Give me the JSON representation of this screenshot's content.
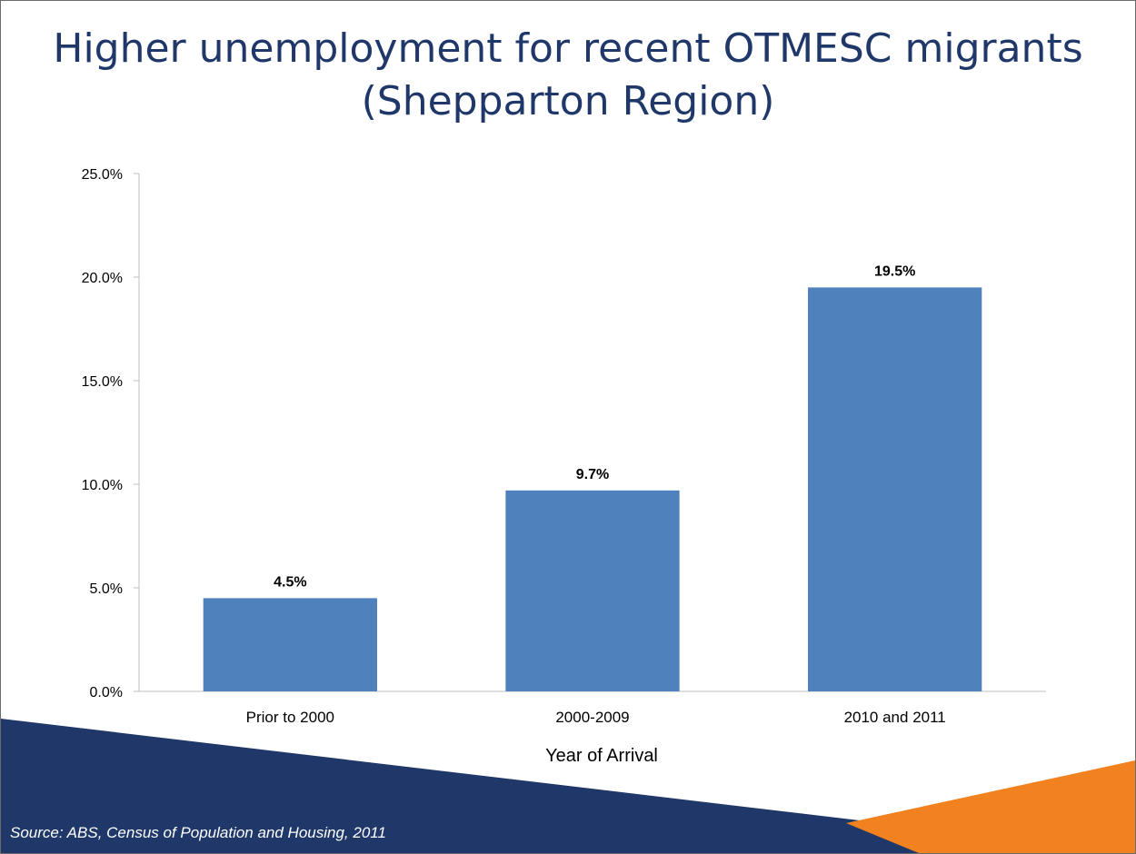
{
  "slide": {
    "title_line1": "Higher unemployment for recent OTMESC migrants",
    "title_line2": "(Shepparton Region)",
    "source": "Source: ABS, Census of Population and Housing, 2011"
  },
  "chart_data": {
    "type": "bar",
    "categories": [
      "Prior to 2000",
      "2000-2009",
      "2010 and 2011"
    ],
    "values": [
      4.5,
      9.7,
      19.5
    ],
    "data_labels": [
      "4.5%",
      "9.7%",
      "19.5%"
    ],
    "title": "",
    "xlabel": "Year of Arrival",
    "ylabel": "",
    "ylim": [
      0,
      25
    ],
    "yticks": [
      0,
      5,
      10,
      15,
      20,
      25
    ],
    "ytick_labels": [
      "0.0%",
      "5.0%",
      "10.0%",
      "15.0%",
      "20.0%",
      "25.0%"
    ],
    "grid": false,
    "legend": "none",
    "bar_color": "#4f81bd"
  },
  "colors": {
    "title": "#1f3869",
    "footer_navy": "#1f3869",
    "footer_orange": "#f28220"
  }
}
